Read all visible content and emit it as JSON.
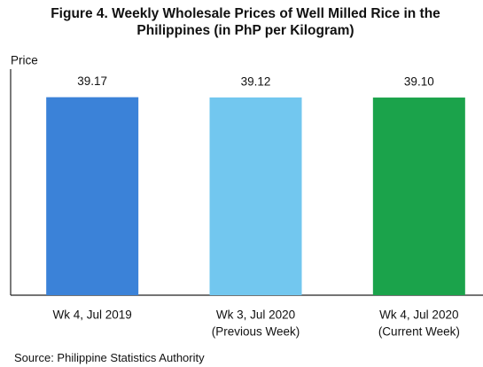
{
  "chart_data": {
    "type": "bar",
    "title": "Figure 4. Weekly Wholesale Prices of Well Milled Rice in the Philippines (in PhP per Kilogram)",
    "y_label": "Price",
    "categories": [
      [
        "Wk 4, Jul 2019"
      ],
      [
        "Wk 3, Jul 2020",
        "(Previous Week)"
      ],
      [
        "Wk 4, Jul 2020",
        "(Current Week)"
      ]
    ],
    "values": [
      39.17,
      39.12,
      39.1
    ],
    "value_labels": [
      "39.17",
      "39.12",
      "39.10"
    ],
    "colors": [
      "#3b82d8",
      "#72c7ef",
      "#1ba34b"
    ],
    "ylim": [
      0,
      47
    ],
    "source": "Source: Philippine Statistics Authority"
  }
}
